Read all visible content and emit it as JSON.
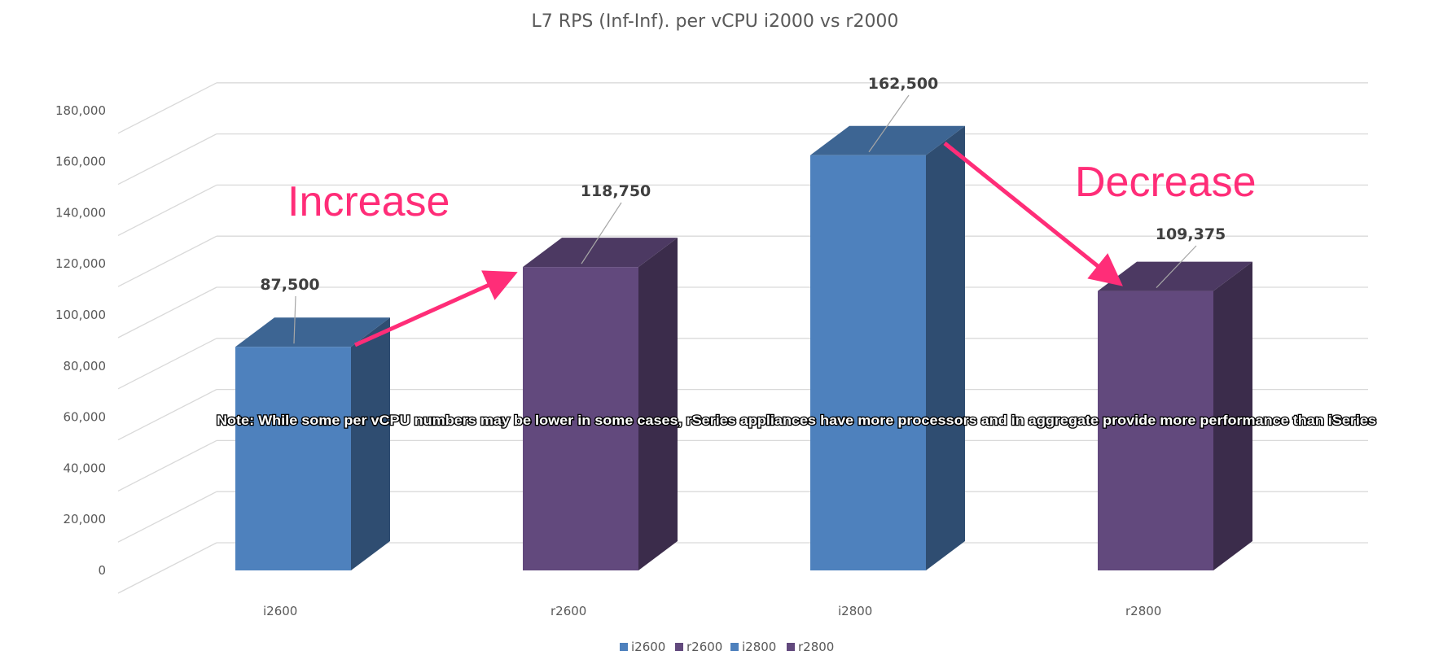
{
  "chart_data": {
    "type": "bar",
    "title": "L7 RPS (Inf-Inf). per vCPU i2000 vs r2000",
    "categories": [
      "i2600",
      "r2600",
      "i2800",
      "r2800"
    ],
    "values": [
      87500,
      118750,
      162500,
      109375
    ],
    "data_labels": [
      "87,500",
      "118,750",
      "162,500",
      "109,375"
    ],
    "bar_colors": [
      "#4e81bd",
      "#62497d",
      "#4e81bd",
      "#62497d"
    ],
    "ylim": [
      0,
      180000
    ],
    "yticks": [
      0,
      20000,
      40000,
      60000,
      80000,
      100000,
      120000,
      140000,
      160000,
      180000
    ],
    "ytick_labels": [
      "0",
      "20,000",
      "40,000",
      "60,000",
      "80,000",
      "100,000",
      "120,000",
      "140,000",
      "160,000",
      "180,000"
    ],
    "grid": true,
    "style": "3d-column",
    "legend": {
      "placement": "bottom",
      "entries": [
        {
          "name": "i2600",
          "color": "#4e81bd"
        },
        {
          "name": "r2600",
          "color": "#62497d"
        },
        {
          "name": "i2800",
          "color": "#4e81bd"
        },
        {
          "name": "r2800",
          "color": "#62497d"
        }
      ]
    },
    "annotations": {
      "increase": {
        "text": "Increase",
        "color": "#ff2d78",
        "from": "i2600",
        "to": "r2600"
      },
      "decrease": {
        "text": "Decrease",
        "color": "#ff2d78",
        "from": "i2800",
        "to": "r2800"
      },
      "note": "Note: While some per vCPU numbers may be lower in some cases, rSeries appliances have more processors and in aggregate provide more performance than iSeries"
    }
  }
}
